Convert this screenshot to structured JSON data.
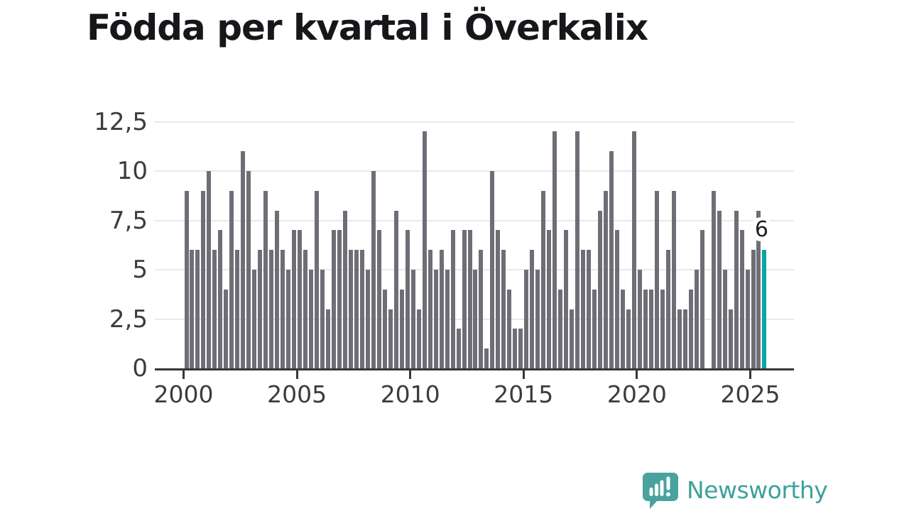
{
  "title": "Födda per kvartal i Överkalix",
  "annotation": {
    "label": "6"
  },
  "footer": {
    "brand": "Newsworthy"
  },
  "chart_data": {
    "type": "bar",
    "title": "Födda per kvartal i Överkalix",
    "x_unit": "quarter",
    "x_start": "2000-Q1",
    "x_end": "2025-Q3",
    "x_tick_labels": [
      "2000",
      "2005",
      "2010",
      "2015",
      "2020",
      "2025"
    ],
    "y_ticks": [
      0,
      2.5,
      5,
      7.5,
      10,
      12.5
    ],
    "y_tick_labels": [
      "0",
      "2,5",
      "5",
      "7,5",
      "10",
      "12,5"
    ],
    "ylim": [
      0,
      12.5
    ],
    "grid": "horizontal",
    "legend": "none",
    "series": [
      {
        "name": "Födda per kvartal",
        "values": [
          9,
          6,
          6,
          9,
          10,
          6,
          7,
          4,
          9,
          6,
          11,
          10,
          5,
          6,
          9,
          6,
          8,
          6,
          5,
          7,
          7,
          6,
          5,
          9,
          5,
          3,
          7,
          7,
          8,
          6,
          6,
          6,
          5,
          10,
          7,
          4,
          3,
          8,
          4,
          7,
          5,
          3,
          12,
          6,
          5,
          6,
          5,
          7,
          2,
          7,
          7,
          5,
          6,
          1,
          10,
          7,
          6,
          4,
          2,
          2,
          5,
          6,
          5,
          9,
          7,
          12,
          4,
          7,
          3,
          12,
          6,
          6,
          4,
          8,
          9,
          11,
          7,
          4,
          3,
          12,
          5,
          4,
          4,
          9,
          4,
          6,
          9,
          3,
          3,
          4,
          5,
          7,
          0,
          9,
          8,
          5,
          3,
          8,
          7,
          5,
          6,
          8,
          6
        ]
      }
    ],
    "highlight": {
      "index": 102,
      "quarter": "2025-Q3",
      "value": 6,
      "label": "6"
    },
    "colors": {
      "bar": "#6e6e76",
      "highlight": "#0ba6a0",
      "brand": "#3da19c"
    }
  }
}
